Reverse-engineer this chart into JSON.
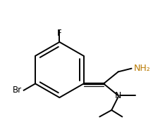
{
  "background_color": "#ffffff",
  "line_color": "#000000",
  "label_color_br": "#000000",
  "label_color_f": "#000000",
  "label_color_n": "#000000",
  "label_color_nh2": "#b87800",
  "label_br": "Br",
  "label_f": "F",
  "label_n": "N",
  "label_nh2": "NH₂",
  "figsize": [
    2.17,
    1.84
  ],
  "dpi": 100,
  "lw": 1.4
}
